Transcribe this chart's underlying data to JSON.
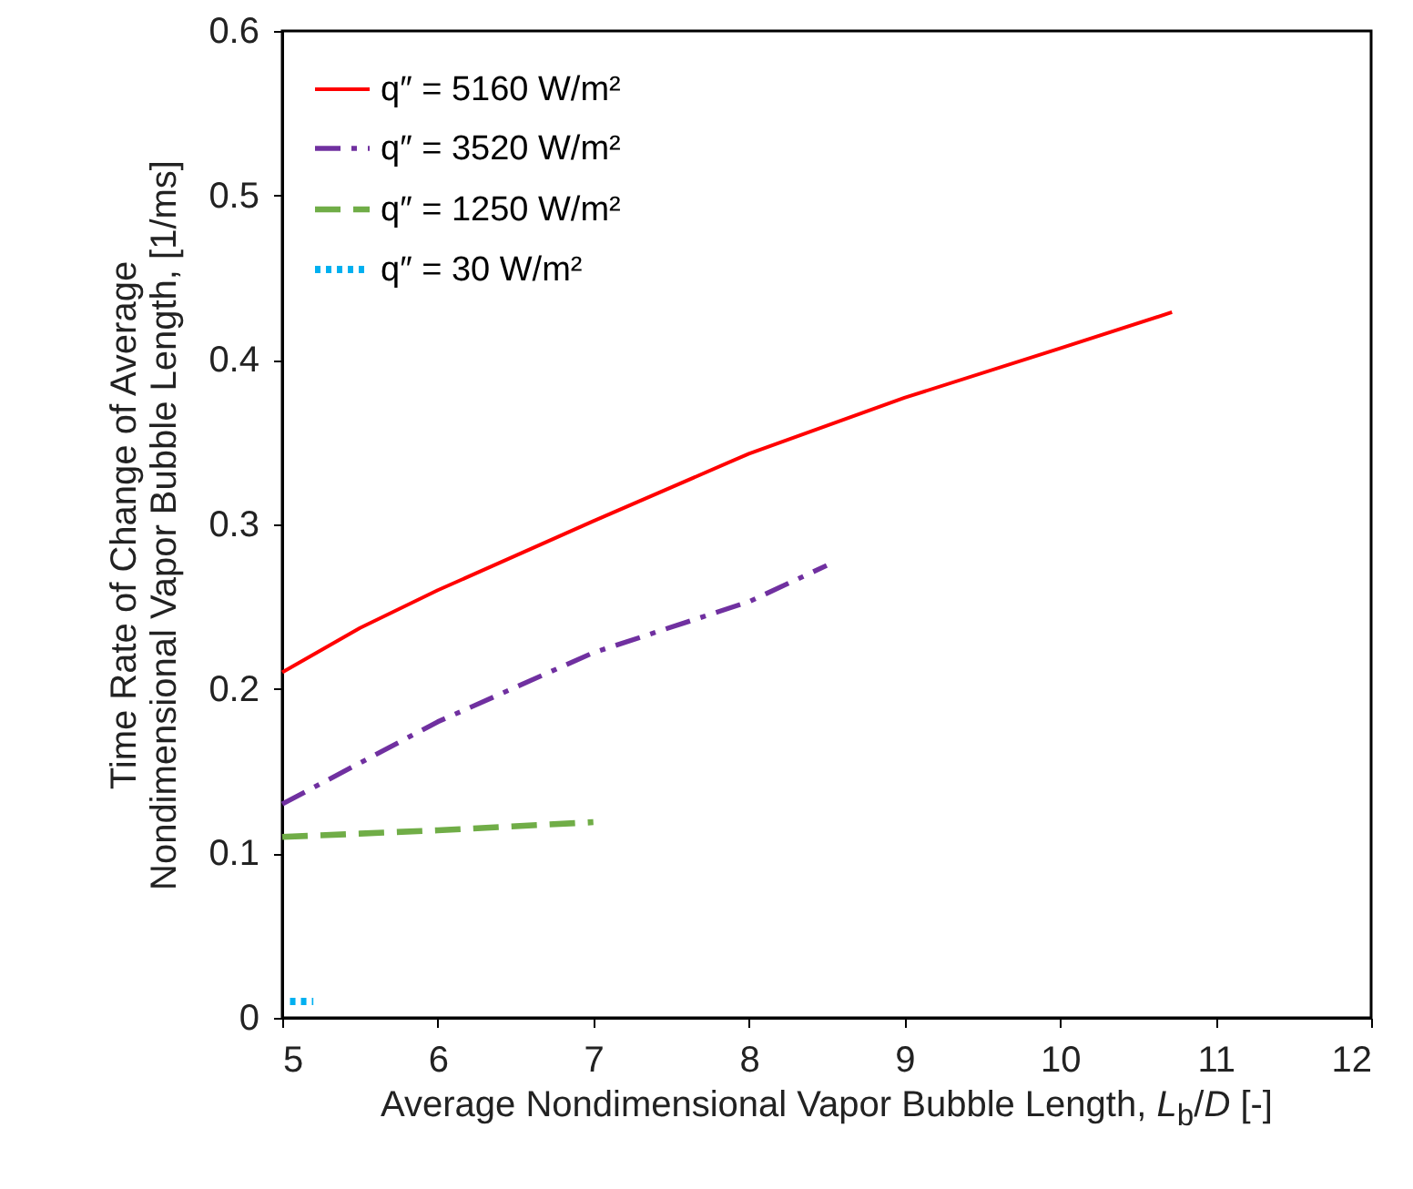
{
  "chart_data": {
    "type": "line",
    "xlabel": "Average Nondimensional Vapor Bubble Length, $_{}$L$_{b}$/D [-]",
    "ylabel": "Time Rate of Change of Average\nNondimensional Vapor  Bubble Length, [1/ms]",
    "xlim": [
      5,
      12
    ],
    "xticks": [
      5,
      6,
      7,
      8,
      9,
      10,
      11,
      12
    ],
    "ylim": [
      0,
      0.6
    ],
    "yticks": [
      0,
      0.1,
      0.2,
      0.3,
      0.4,
      0.5,
      0.6
    ],
    "grid": false,
    "legend": "top left",
    "marker": "none",
    "series": [
      {
        "name": "q″ = 5160 W/m²",
        "color": "#ff0000",
        "line_style": "solid",
        "x": [
          5,
          5.5,
          6,
          7,
          8,
          9,
          10,
          10.72
        ],
        "values": [
          0.21,
          0.237,
          0.26,
          0.302,
          0.343,
          0.377,
          0.407,
          0.429
        ]
      },
      {
        "name": "q″ = 3520 W/m²",
        "color": "#7030a0",
        "line_style": "dashdot",
        "x": [
          5,
          5.5,
          6,
          7,
          8,
          8.5
        ],
        "values": [
          0.13,
          0.155,
          0.18,
          0.222,
          0.253,
          0.275
        ]
      },
      {
        "name": "q″ = 1250 W/m²",
        "color": "#70ad47",
        "line_style": "dashed",
        "x": [
          5,
          5.5,
          6,
          7
        ],
        "values": [
          0.11,
          0.112,
          0.114,
          0.119
        ]
      },
      {
        "name": "q″ = 30 W/m²",
        "color": "#00b0f0",
        "line_style": "dotted",
        "x": [
          5.05,
          5.2
        ],
        "values": [
          0.01,
          0.01
        ]
      }
    ]
  }
}
